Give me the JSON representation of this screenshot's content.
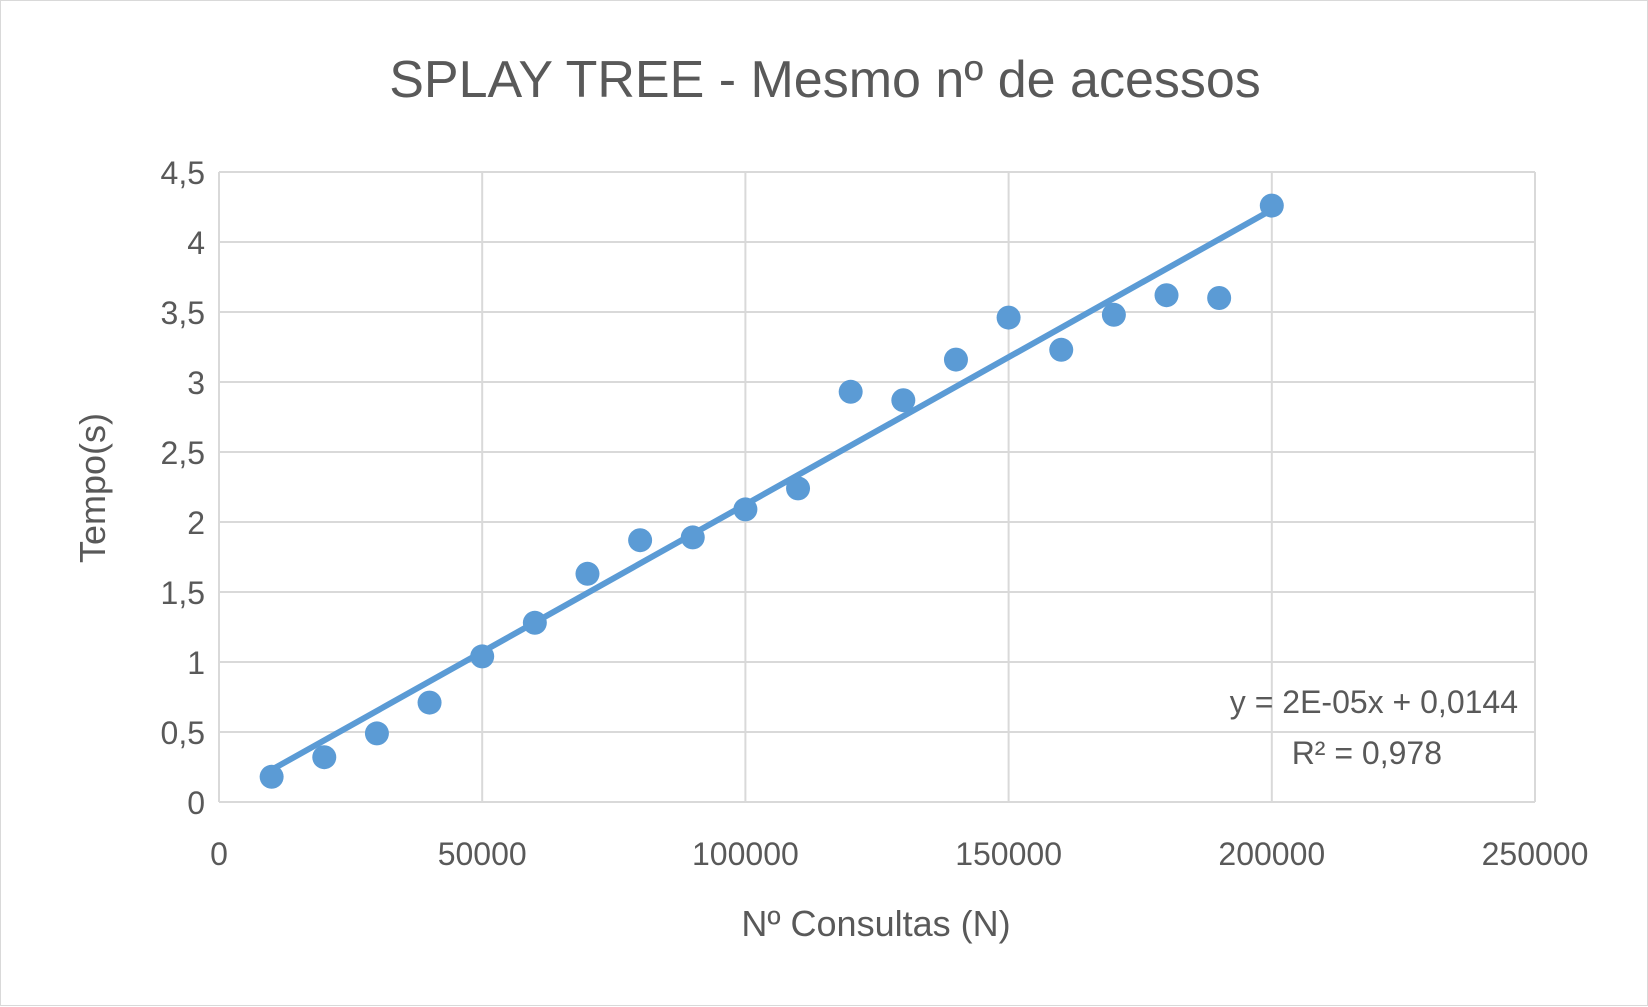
{
  "chart_data": {
    "type": "scatter",
    "title": "SPLAY TREE - Mesmo nº de acessos",
    "xlabel": "Nº Consultas (N)",
    "ylabel": "Tempo(s)",
    "xlim": [
      0,
      250000
    ],
    "ylim": [
      0,
      4.5
    ],
    "x_ticks": [
      0,
      50000,
      100000,
      150000,
      200000,
      250000
    ],
    "x_tick_labels": [
      "0",
      "50000",
      "100000",
      "150000",
      "200000",
      "250000"
    ],
    "y_ticks": [
      0,
      0.5,
      1,
      1.5,
      2,
      2.5,
      3,
      3.5,
      4,
      4.5
    ],
    "y_tick_labels": [
      "0",
      "0,5",
      "1",
      "1,5",
      "2",
      "2,5",
      "3",
      "3,5",
      "4",
      "4,5"
    ],
    "grid": true,
    "series": [
      {
        "x": [
          10000,
          20000,
          30000,
          40000,
          50000,
          60000,
          70000,
          80000,
          90000,
          100000,
          110000,
          120000,
          130000,
          140000,
          150000,
          160000,
          170000,
          180000,
          190000,
          200000
        ],
        "y": [
          0.18,
          0.32,
          0.49,
          0.71,
          1.04,
          1.28,
          1.63,
          1.87,
          1.89,
          2.09,
          2.24,
          2.93,
          2.87,
          3.16,
          3.46,
          3.23,
          3.48,
          3.62,
          3.6,
          4.26
        ],
        "color": "#5b9bd5"
      }
    ],
    "trendline": {
      "type": "linear",
      "x_range": [
        10000,
        200000
      ],
      "y_range": [
        0.23,
        4.23
      ],
      "color": "#5b9bd5",
      "equation": "y = 2E-05x + 0,0144",
      "r_squared": "R² = 0,978"
    },
    "colors": {
      "marker": "#5b9bd5",
      "grid": "#d9d9d9",
      "text": "#595959"
    }
  }
}
